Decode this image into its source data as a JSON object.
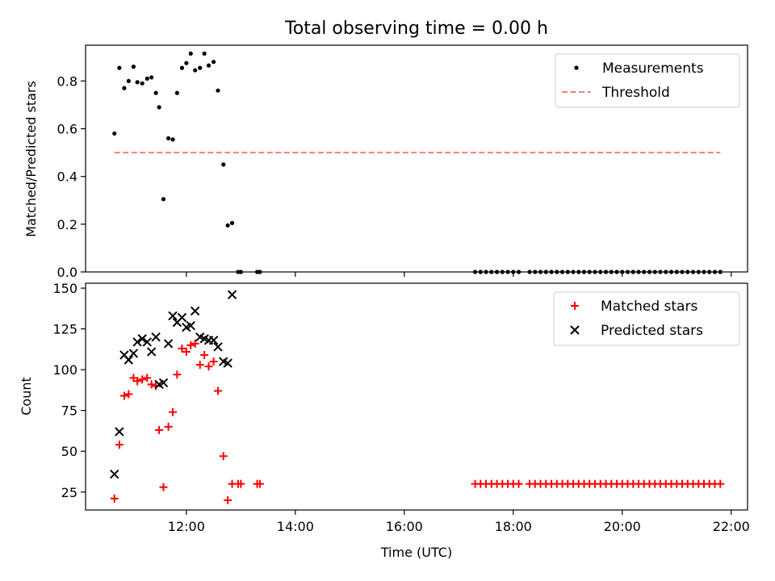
{
  "chart_data": [
    {
      "type": "scatter",
      "title": "Total observing time = 0.00 h",
      "xlabel": "",
      "ylabel": "Matched/Predicted stars",
      "xlim": [
        10.15,
        22.3
      ],
      "ylim": [
        0,
        0.95
      ],
      "yticks": [
        0.0,
        0.2,
        0.4,
        0.6,
        0.8
      ],
      "ytick_labels": [
        "0.0",
        "0.2",
        "0.4",
        "0.6",
        "0.8"
      ],
      "legend_position": "upper right",
      "series": [
        {
          "name": "Measurements",
          "kind": "points",
          "color": "#000000",
          "points": [
            [
              10.68,
              0.58
            ],
            [
              10.77,
              0.855
            ],
            [
              10.86,
              0.77
            ],
            [
              10.94,
              0.8
            ],
            [
              11.03,
              0.86
            ],
            [
              11.1,
              0.795
            ],
            [
              11.19,
              0.79
            ],
            [
              11.28,
              0.81
            ],
            [
              11.36,
              0.815
            ],
            [
              11.44,
              0.75
            ],
            [
              11.5,
              0.69
            ],
            [
              11.58,
              0.305
            ],
            [
              11.67,
              0.56
            ],
            [
              11.75,
              0.555
            ],
            [
              11.83,
              0.75
            ],
            [
              11.92,
              0.855
            ],
            [
              12.0,
              0.875
            ],
            [
              12.08,
              0.915
            ],
            [
              12.16,
              0.845
            ],
            [
              12.25,
              0.855
            ],
            [
              12.33,
              0.915
            ],
            [
              12.41,
              0.865
            ],
            [
              12.5,
              0.88
            ],
            [
              12.58,
              0.76
            ],
            [
              12.68,
              0.45
            ],
            [
              12.76,
              0.195
            ],
            [
              12.84,
              0.205
            ],
            [
              12.95,
              0.0
            ],
            [
              13.0,
              0.0
            ],
            [
              13.3,
              0.0
            ],
            [
              13.35,
              0.0
            ],
            [
              17.3,
              0.0
            ],
            [
              17.4,
              0.0
            ],
            [
              17.5,
              0.0
            ],
            [
              17.6,
              0.0
            ],
            [
              17.7,
              0.0
            ],
            [
              17.8,
              0.0
            ],
            [
              17.9,
              0.0
            ],
            [
              18.0,
              0.0
            ],
            [
              18.1,
              0.0
            ],
            [
              18.3,
              0.0
            ],
            [
              18.4,
              0.0
            ],
            [
              18.5,
              0.0
            ],
            [
              18.6,
              0.0
            ],
            [
              18.7,
              0.0
            ],
            [
              18.8,
              0.0
            ],
            [
              18.9,
              0.0
            ],
            [
              19.0,
              0.0
            ],
            [
              19.1,
              0.0
            ],
            [
              19.2,
              0.0
            ],
            [
              19.3,
              0.0
            ],
            [
              19.4,
              0.0
            ],
            [
              19.5,
              0.0
            ],
            [
              19.6,
              0.0
            ],
            [
              19.7,
              0.0
            ],
            [
              19.8,
              0.0
            ],
            [
              19.9,
              0.0
            ],
            [
              20.0,
              0.0
            ],
            [
              20.1,
              0.0
            ],
            [
              20.2,
              0.0
            ],
            [
              20.3,
              0.0
            ],
            [
              20.4,
              0.0
            ],
            [
              20.5,
              0.0
            ],
            [
              20.6,
              0.0
            ],
            [
              20.7,
              0.0
            ],
            [
              20.8,
              0.0
            ],
            [
              20.9,
              0.0
            ],
            [
              21.0,
              0.0
            ],
            [
              21.1,
              0.0
            ],
            [
              21.2,
              0.0
            ],
            [
              21.3,
              0.0
            ],
            [
              21.4,
              0.0
            ],
            [
              21.5,
              0.0
            ],
            [
              21.6,
              0.0
            ],
            [
              21.7,
              0.0
            ],
            [
              21.8,
              0.0
            ]
          ]
        },
        {
          "name": "Threshold",
          "kind": "dashed-line",
          "color": "#f08080",
          "x": [
            10.68,
            21.8
          ],
          "y": [
            0.5,
            0.5
          ]
        }
      ]
    },
    {
      "type": "scatter",
      "title": "",
      "xlabel": "Time (UTC)",
      "ylabel": "Count",
      "xlim": [
        10.15,
        22.3
      ],
      "ylim": [
        14,
        153
      ],
      "yticks": [
        25,
        50,
        75,
        100,
        125,
        150
      ],
      "ytick_labels": [
        "25",
        "50",
        "75",
        "100",
        "125",
        "150"
      ],
      "xticks": [
        12,
        14,
        16,
        18,
        20,
        22
      ],
      "xtick_labels": [
        "12:00",
        "14:00",
        "16:00",
        "18:00",
        "20:00",
        "22:00"
      ],
      "legend_position": "upper right",
      "series": [
        {
          "name": "Matched stars",
          "kind": "plus",
          "color": "#ff0000",
          "points": [
            [
              10.68,
              21
            ],
            [
              10.77,
              54
            ],
            [
              10.86,
              84
            ],
            [
              10.94,
              85
            ],
            [
              11.03,
              95
            ],
            [
              11.1,
              93
            ],
            [
              11.19,
              94
            ],
            [
              11.28,
              95
            ],
            [
              11.36,
              91
            ],
            [
              11.44,
              90
            ],
            [
              11.5,
              63
            ],
            [
              11.58,
              28
            ],
            [
              11.67,
              65
            ],
            [
              11.75,
              74
            ],
            [
              11.83,
              97
            ],
            [
              11.92,
              113
            ],
            [
              12.0,
              111
            ],
            [
              12.08,
              115
            ],
            [
              12.16,
              116
            ],
            [
              12.25,
              103
            ],
            [
              12.33,
              109
            ],
            [
              12.41,
              102
            ],
            [
              12.5,
              105
            ],
            [
              12.58,
              87
            ],
            [
              12.68,
              47
            ],
            [
              12.76,
              20
            ],
            [
              12.84,
              30
            ],
            [
              12.95,
              30
            ],
            [
              13.0,
              30
            ],
            [
              13.3,
              30
            ],
            [
              13.35,
              30
            ],
            [
              17.3,
              30
            ],
            [
              17.4,
              30
            ],
            [
              17.5,
              30
            ],
            [
              17.6,
              30
            ],
            [
              17.7,
              30
            ],
            [
              17.8,
              30
            ],
            [
              17.9,
              30
            ],
            [
              18.0,
              30
            ],
            [
              18.1,
              30
            ],
            [
              18.3,
              30
            ],
            [
              18.4,
              30
            ],
            [
              18.5,
              30
            ],
            [
              18.6,
              30
            ],
            [
              18.7,
              30
            ],
            [
              18.8,
              30
            ],
            [
              18.9,
              30
            ],
            [
              19.0,
              30
            ],
            [
              19.1,
              30
            ],
            [
              19.2,
              30
            ],
            [
              19.3,
              30
            ],
            [
              19.4,
              30
            ],
            [
              19.5,
              30
            ],
            [
              19.6,
              30
            ],
            [
              19.7,
              30
            ],
            [
              19.8,
              30
            ],
            [
              19.9,
              30
            ],
            [
              20.0,
              30
            ],
            [
              20.1,
              30
            ],
            [
              20.2,
              30
            ],
            [
              20.3,
              30
            ],
            [
              20.4,
              30
            ],
            [
              20.5,
              30
            ],
            [
              20.6,
              30
            ],
            [
              20.7,
              30
            ],
            [
              20.8,
              30
            ],
            [
              20.9,
              30
            ],
            [
              21.0,
              30
            ],
            [
              21.1,
              30
            ],
            [
              21.2,
              30
            ],
            [
              21.3,
              30
            ],
            [
              21.4,
              30
            ],
            [
              21.5,
              30
            ],
            [
              21.6,
              30
            ],
            [
              21.7,
              30
            ],
            [
              21.8,
              30
            ]
          ]
        },
        {
          "name": "Predicted stars",
          "kind": "x",
          "color": "#000000",
          "points": [
            [
              10.68,
              36
            ],
            [
              10.77,
              62
            ],
            [
              10.86,
              109
            ],
            [
              10.94,
              106
            ],
            [
              11.03,
              110
            ],
            [
              11.1,
              117
            ],
            [
              11.19,
              119
            ],
            [
              11.28,
              117
            ],
            [
              11.36,
              111
            ],
            [
              11.44,
              120
            ],
            [
              11.5,
              91
            ],
            [
              11.58,
              92
            ],
            [
              11.67,
              116
            ],
            [
              11.75,
              133
            ],
            [
              11.83,
              129
            ],
            [
              11.92,
              132
            ],
            [
              12.0,
              126
            ],
            [
              12.08,
              127
            ],
            [
              12.16,
              136
            ],
            [
              12.25,
              120
            ],
            [
              12.33,
              119
            ],
            [
              12.41,
              118
            ],
            [
              12.5,
              118
            ],
            [
              12.58,
              114
            ],
            [
              12.68,
              105
            ],
            [
              12.76,
              104
            ],
            [
              12.84,
              146
            ]
          ]
        }
      ]
    }
  ]
}
